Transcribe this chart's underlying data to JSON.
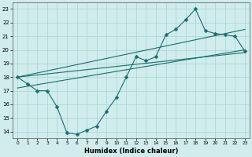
{
  "xlabel": "Humidex (Indice chaleur)",
  "bg_color": "#d0ecec",
  "grid_color": "#a8d4d4",
  "line_color": "#1a6e6e",
  "xlim": [
    -0.5,
    23.5
  ],
  "ylim": [
    13.5,
    23.5
  ],
  "xticks": [
    0,
    1,
    2,
    3,
    4,
    5,
    6,
    7,
    8,
    9,
    10,
    11,
    12,
    13,
    14,
    15,
    16,
    17,
    18,
    19,
    20,
    21,
    22,
    23
  ],
  "yticks": [
    14,
    15,
    16,
    17,
    18,
    19,
    20,
    21,
    22,
    23
  ],
  "curve_x": [
    0,
    1,
    2,
    3,
    4,
    5,
    6,
    7,
    8,
    9,
    10,
    11,
    12,
    13,
    14,
    15,
    16,
    17,
    18,
    19,
    20,
    21,
    22,
    23
  ],
  "curve_y": [
    18,
    17.5,
    17.0,
    17.0,
    15.8,
    13.9,
    13.8,
    14.1,
    14.4,
    15.5,
    16.5,
    18.0,
    19.5,
    19.2,
    19.5,
    21.1,
    21.5,
    22.2,
    23.0,
    21.4,
    21.2,
    21.1,
    21.0,
    19.9
  ],
  "line1_x": [
    0,
    23
  ],
  "line1_y": [
    18.0,
    21.5
  ],
  "line2_x": [
    0,
    23
  ],
  "line2_y": [
    17.2,
    20.0
  ],
  "line3_x": [
    0,
    23
  ],
  "line3_y": [
    18.0,
    19.8
  ]
}
